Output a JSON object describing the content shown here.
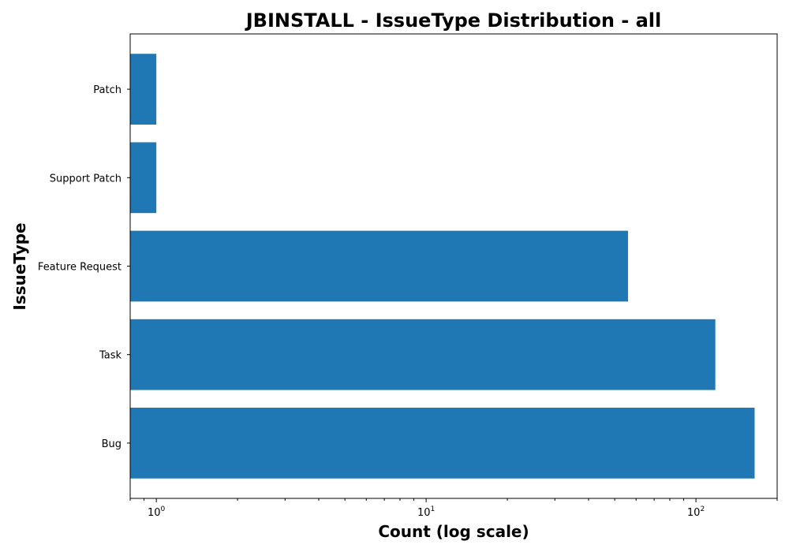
{
  "chart_data": {
    "type": "bar",
    "orientation": "horizontal",
    "title": "JBINSTALL - IssueType Distribution - all",
    "xlabel": "Count (log scale)",
    "ylabel": "IssueType",
    "x_scale": "log",
    "xlim": [
      0.8,
      200
    ],
    "categories": [
      "Bug",
      "Task",
      "Feature Request",
      "Support Patch",
      "Patch"
    ],
    "values": [
      165,
      118,
      56,
      1,
      1
    ],
    "x_ticks": [
      {
        "value": 1,
        "base": "10",
        "exp": "0"
      },
      {
        "value": 10,
        "base": "10",
        "exp": "1"
      },
      {
        "value": 100,
        "base": "10",
        "exp": "2"
      }
    ],
    "bar_color": "#1f77b4",
    "grid": false,
    "legend": "none"
  }
}
